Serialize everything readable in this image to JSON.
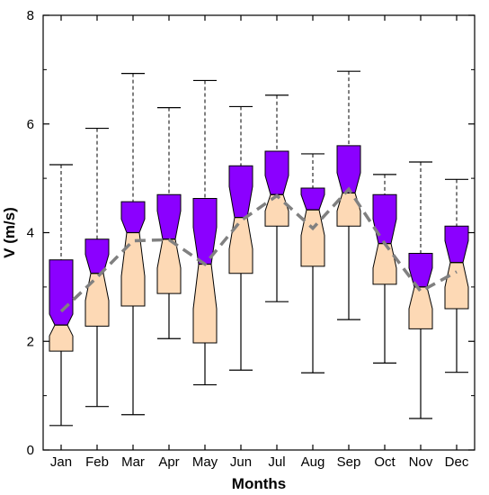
{
  "chart_data": {
    "type": "box",
    "title": "",
    "xlabel": "Months",
    "ylabel": "V (m/s)",
    "ylim": [
      0,
      8
    ],
    "yticks": [
      0,
      2,
      4,
      6,
      8
    ],
    "grid": false,
    "legend": "none",
    "categories": [
      "Jan",
      "Feb",
      "Mar",
      "Apr",
      "May",
      "Jun",
      "Jul",
      "Aug",
      "Sep",
      "Oct",
      "Nov",
      "Dec"
    ],
    "boxes": [
      {
        "whisker_low": 0.45,
        "q1": 1.82,
        "median": 2.3,
        "q3": 3.5,
        "whisker_high": 5.25,
        "notch_low": 2.1,
        "notch_high": 2.5
      },
      {
        "whisker_low": 0.8,
        "q1": 2.28,
        "median": 3.25,
        "q3": 3.88,
        "whisker_high": 5.92,
        "notch_low": 2.75,
        "notch_high": 3.6
      },
      {
        "whisker_low": 0.65,
        "q1": 2.65,
        "median": 4.0,
        "q3": 4.57,
        "whisker_high": 6.93,
        "notch_low": 3.2,
        "notch_high": 4.25
      },
      {
        "whisker_low": 2.05,
        "q1": 2.88,
        "median": 3.88,
        "q3": 4.7,
        "whisker_high": 6.3,
        "notch_low": 3.35,
        "notch_high": 4.4
      },
      {
        "whisker_low": 1.2,
        "q1": 1.97,
        "median": 3.42,
        "q3": 4.63,
        "whisker_high": 6.8,
        "notch_low": 2.6,
        "notch_high": 4.1
      },
      {
        "whisker_low": 1.47,
        "q1": 3.25,
        "median": 4.28,
        "q3": 5.23,
        "whisker_high": 6.32,
        "notch_low": 3.7,
        "notch_high": 4.85
      },
      {
        "whisker_low": 2.73,
        "q1": 4.12,
        "median": 4.7,
        "q3": 5.5,
        "whisker_high": 6.53,
        "notch_low": 4.4,
        "notch_high": 5.05
      },
      {
        "whisker_low": 1.42,
        "q1": 3.38,
        "median": 4.42,
        "q3": 4.82,
        "whisker_high": 5.45,
        "notch_low": 3.95,
        "notch_high": 4.7
      },
      {
        "whisker_low": 2.4,
        "q1": 4.12,
        "median": 4.73,
        "q3": 5.6,
        "whisker_high": 6.97,
        "notch_low": 4.4,
        "notch_high": 5.1
      },
      {
        "whisker_low": 1.6,
        "q1": 3.05,
        "median": 3.8,
        "q3": 4.7,
        "whisker_high": 5.07,
        "notch_low": 3.35,
        "notch_high": 4.25
      },
      {
        "whisker_low": 0.58,
        "q1": 2.23,
        "median": 3.0,
        "q3": 3.62,
        "whisker_high": 5.3,
        "notch_low": 2.6,
        "notch_high": 3.35
      },
      {
        "whisker_low": 1.43,
        "q1": 2.6,
        "median": 3.45,
        "q3": 4.12,
        "whisker_high": 4.98,
        "notch_low": 3.0,
        "notch_high": 3.85
      }
    ],
    "mean_line": [
      2.55,
      3.18,
      3.85,
      3.87,
      3.42,
      4.22,
      4.68,
      4.08,
      4.8,
      3.8,
      2.92,
      3.28
    ],
    "colors": {
      "lower_box": "#fdd9b5",
      "upper_box": "#8b00ff",
      "mean_line": "#808080",
      "outline": "#000000"
    }
  }
}
